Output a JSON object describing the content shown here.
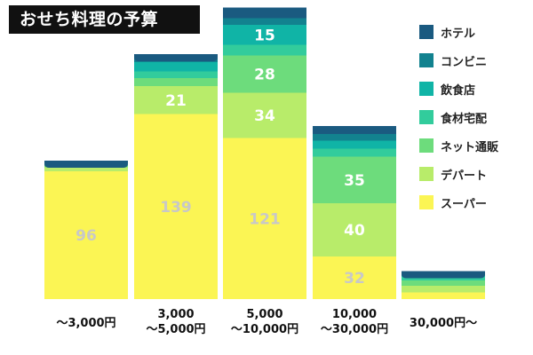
{
  "header": {
    "title": "おせち料理の予算"
  },
  "colors": {
    "ホテル": "#1a5a80",
    "コンビニ": "#12828f",
    "飲食店": "#10b4a6",
    "食材宅配": "#32cc9c",
    "ネット通販": "#6ddc7c",
    "デパート": "#b8ec6a",
    "スーパー": "#fbf554"
  },
  "chart_data": {
    "type": "bar",
    "stacked": true,
    "title": "おせち料理の予算",
    "legend_position": "right",
    "categories": [
      [
        "～3,000円"
      ],
      [
        "3,000",
        "～5,000円"
      ],
      [
        "5,000",
        "～10,000円"
      ],
      [
        "10,000",
        "～30,000円"
      ],
      [
        "30,000円～"
      ]
    ],
    "series": [
      {
        "name": "スーパー",
        "values": [
          96,
          139,
          121,
          32,
          5
        ]
      },
      {
        "name": "デパート",
        "values": [
          3,
          21,
          34,
          40,
          5
        ]
      },
      {
        "name": "ネット通販",
        "values": [
          2,
          6,
          28,
          35,
          4
        ]
      },
      {
        "name": "食材宅配",
        "values": [
          1,
          5,
          8,
          6,
          3
        ]
      },
      {
        "name": "飲食店",
        "values": [
          0,
          7,
          15,
          6,
          1
        ]
      },
      {
        "name": "コンビニ",
        "values": [
          0,
          4,
          5,
          5,
          1
        ]
      },
      {
        "name": "ホテル",
        "values": [
          2,
          2,
          8,
          6,
          2
        ]
      }
    ],
    "data_labels": [
      {
        "series": "スーパー",
        "category": 0,
        "value": "96",
        "color": "#c8c8c8"
      },
      {
        "series": "スーパー",
        "category": 1,
        "value": "139",
        "color": "#c8c8c8"
      },
      {
        "series": "スーパー",
        "category": 2,
        "value": "121",
        "color": "#c8c8c8"
      },
      {
        "series": "スーパー",
        "category": 3,
        "value": "32",
        "color": "#c8c8c8"
      },
      {
        "series": "デパート",
        "category": 1,
        "value": "21",
        "color": "#ffffff"
      },
      {
        "series": "デパート",
        "category": 2,
        "value": "34",
        "color": "#ffffff"
      },
      {
        "series": "デパート",
        "category": 3,
        "value": "40",
        "color": "#ffffff"
      },
      {
        "series": "ネット通販",
        "category": 2,
        "value": "28",
        "color": "#ffffff"
      },
      {
        "series": "ネット通販",
        "category": 3,
        "value": "35",
        "color": "#ffffff"
      },
      {
        "series": "飲食店",
        "category": 2,
        "value": "15",
        "color": "#ffffff"
      }
    ]
  }
}
